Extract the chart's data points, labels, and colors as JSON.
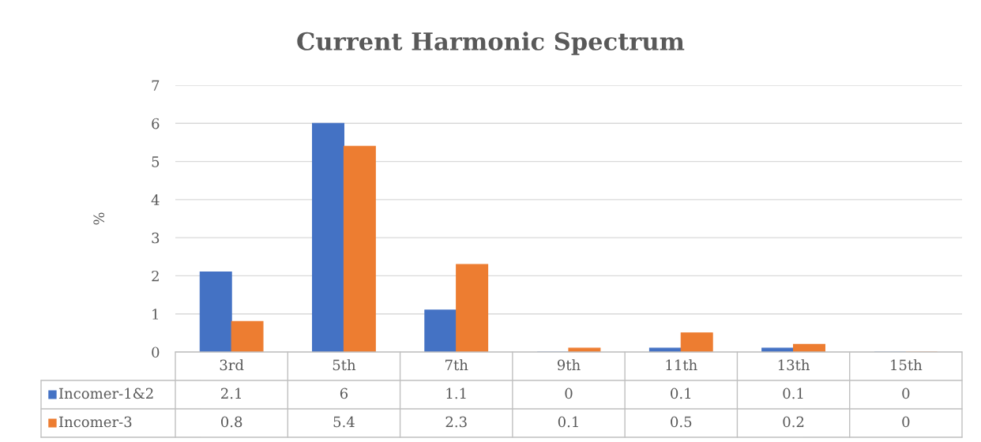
{
  "chart_data": {
    "type": "bar",
    "title": "Current Harmonic Spectrum",
    "ylabel": "%",
    "categories": [
      "3rd",
      "5th",
      "7th",
      "9th",
      "11th",
      "13th",
      "15th"
    ],
    "series": [
      {
        "name": "Incomer-1&2",
        "color": "#4472c4",
        "values": [
          2.1,
          6,
          1.1,
          0,
          0.1,
          0.1,
          0
        ]
      },
      {
        "name": "Incomer-3",
        "color": "#ed7d31",
        "values": [
          0.8,
          5.4,
          2.3,
          0.1,
          0.5,
          0.2,
          0
        ]
      }
    ],
    "ylim": [
      0,
      7
    ],
    "yticks": [
      0,
      1,
      2,
      3,
      4,
      5,
      6,
      7
    ],
    "grid": "y",
    "legend": "bottom",
    "data_labels": true
  }
}
